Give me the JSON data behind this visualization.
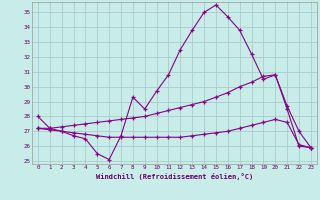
{
  "xlabel": "Windchill (Refroidissement éolien,°C)",
  "bg_color": "#c8ece8",
  "grid_color": "#a8ccc8",
  "line_color": "#880088",
  "xlim": [
    -0.5,
    23.5
  ],
  "ylim": [
    24.8,
    35.7
  ],
  "yticks": [
    25,
    26,
    27,
    28,
    29,
    30,
    31,
    32,
    33,
    34,
    35
  ],
  "xticks": [
    0,
    1,
    2,
    3,
    4,
    5,
    6,
    7,
    8,
    9,
    10,
    11,
    12,
    13,
    14,
    15,
    16,
    17,
    18,
    19,
    20,
    21,
    22,
    23
  ],
  "series1_y": [
    28.0,
    27.2,
    27.0,
    26.7,
    26.5,
    25.5,
    25.1,
    26.7,
    29.3,
    28.5,
    29.7,
    30.8,
    32.5,
    33.8,
    35.0,
    35.5,
    34.7,
    33.8,
    32.2,
    30.5,
    30.8,
    28.7,
    27.0,
    25.9
  ],
  "series2_y": [
    27.2,
    27.2,
    27.3,
    27.4,
    27.5,
    27.6,
    27.7,
    27.8,
    27.9,
    28.0,
    28.2,
    28.4,
    28.6,
    28.8,
    29.0,
    29.3,
    29.6,
    30.0,
    30.3,
    30.7,
    30.8,
    28.5,
    26.0,
    25.9
  ],
  "series3_y": [
    27.2,
    27.1,
    27.0,
    26.9,
    26.8,
    26.7,
    26.6,
    26.6,
    26.6,
    26.6,
    26.6,
    26.6,
    26.6,
    26.7,
    26.8,
    26.9,
    27.0,
    27.2,
    27.4,
    27.6,
    27.8,
    27.6,
    26.1,
    25.9
  ]
}
